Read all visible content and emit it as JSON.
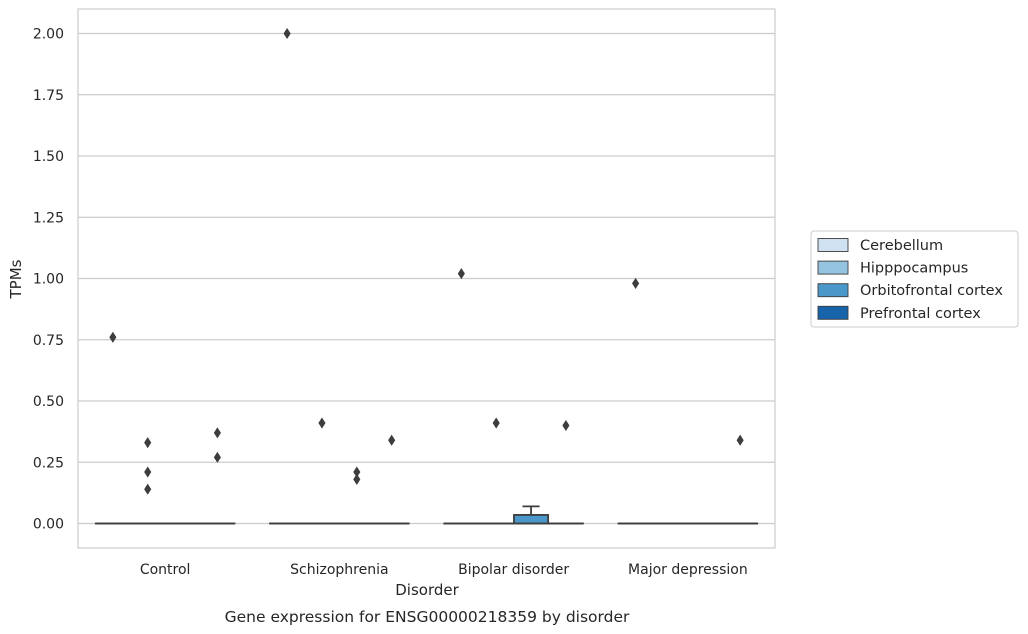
{
  "chart_data": {
    "type": "box",
    "title": "",
    "xlabel": "Disorder",
    "ylabel": "TPMs",
    "caption": "Gene expression for ENSG00000218359 by disorder",
    "ylim": [
      -0.1,
      2.1
    ],
    "yticks": [
      "0.00",
      "0.25",
      "0.50",
      "0.75",
      "1.00",
      "1.25",
      "1.50",
      "1.75",
      "2.00"
    ],
    "grid": true,
    "legend_placement": "right",
    "categories": [
      "Control",
      "Schizophrenia",
      "Bipolar disorder",
      "Major depression"
    ],
    "series": [
      {
        "name": "Cerebellum",
        "color": "#d0e1f2",
        "boxes": [
          {
            "q1": 0,
            "median": 0,
            "q3": 0,
            "whisker_low": 0,
            "whisker_high": 0,
            "outliers": [
              0.76
            ]
          },
          {
            "q1": 0,
            "median": 0,
            "q3": 0,
            "whisker_low": 0,
            "whisker_high": 0,
            "outliers": [
              2.0
            ]
          },
          {
            "q1": 0,
            "median": 0,
            "q3": 0,
            "whisker_low": 0,
            "whisker_high": 0,
            "outliers": [
              1.02
            ]
          },
          {
            "q1": 0,
            "median": 0,
            "q3": 0,
            "whisker_low": 0,
            "whisker_high": 0,
            "outliers": [
              0.98
            ]
          }
        ]
      },
      {
        "name": "Hipppocampus",
        "color": "#94c4df",
        "boxes": [
          {
            "q1": 0,
            "median": 0,
            "q3": 0,
            "whisker_low": 0,
            "whisker_high": 0,
            "outliers": [
              0.14,
              0.21,
              0.33
            ]
          },
          {
            "q1": 0,
            "median": 0,
            "q3": 0,
            "whisker_low": 0,
            "whisker_high": 0,
            "outliers": [
              0.41
            ]
          },
          {
            "q1": 0,
            "median": 0,
            "q3": 0,
            "whisker_low": 0,
            "whisker_high": 0,
            "outliers": [
              0.41
            ]
          },
          {
            "q1": 0,
            "median": 0,
            "q3": 0,
            "whisker_low": 0,
            "whisker_high": 0,
            "outliers": []
          }
        ]
      },
      {
        "name": "Orbitofrontal cortex",
        "color": "#4a98c9",
        "boxes": [
          {
            "q1": 0,
            "median": 0,
            "q3": 0,
            "whisker_low": 0,
            "whisker_high": 0,
            "outliers": []
          },
          {
            "q1": 0,
            "median": 0,
            "q3": 0,
            "whisker_low": 0,
            "whisker_high": 0,
            "outliers": [
              0.18,
              0.21
            ]
          },
          {
            "q1": 0,
            "median": 0,
            "q3": 0.035,
            "whisker_low": 0,
            "whisker_high": 0.07,
            "outliers": []
          },
          {
            "q1": 0,
            "median": 0,
            "q3": 0,
            "whisker_low": 0,
            "whisker_high": 0,
            "outliers": []
          }
        ]
      },
      {
        "name": "Prefrontal cortex",
        "color": "#1764ab",
        "boxes": [
          {
            "q1": 0,
            "median": 0,
            "q3": 0,
            "whisker_low": 0,
            "whisker_high": 0,
            "outliers": [
              0.27,
              0.37
            ]
          },
          {
            "q1": 0,
            "median": 0,
            "q3": 0,
            "whisker_low": 0,
            "whisker_high": 0,
            "outliers": [
              0.34
            ]
          },
          {
            "q1": 0,
            "median": 0,
            "q3": 0,
            "whisker_low": 0,
            "whisker_high": 0,
            "outliers": [
              0.4
            ]
          },
          {
            "q1": 0,
            "median": 0,
            "q3": 0,
            "whisker_low": 0,
            "whisker_high": 0,
            "outliers": [
              0.34
            ]
          }
        ]
      }
    ]
  }
}
